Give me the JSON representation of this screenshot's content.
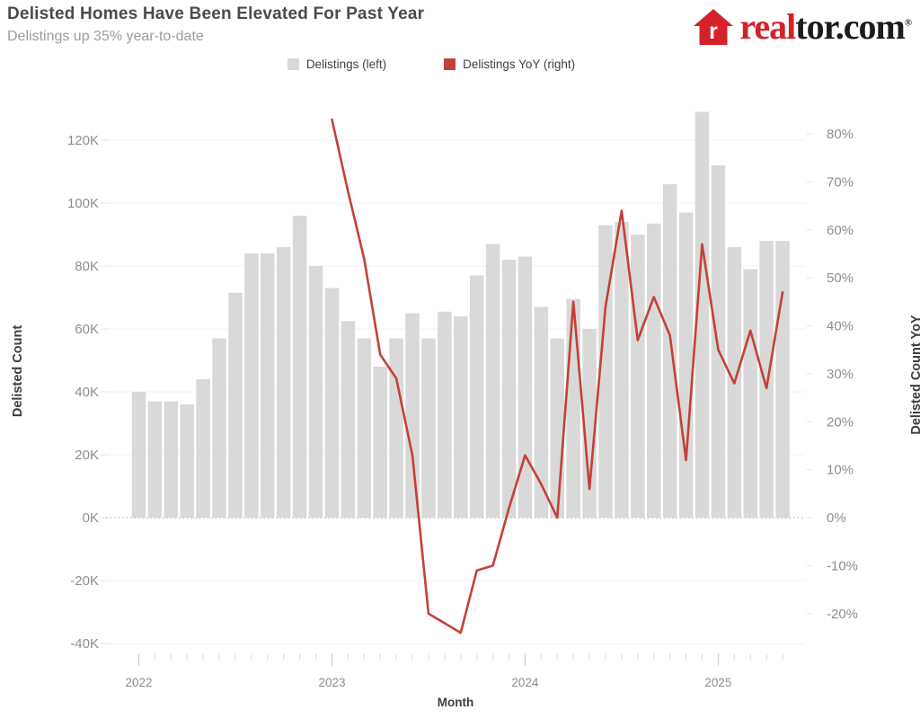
{
  "header": {
    "title": "Delisted Homes Have Been Elevated For Past Year",
    "subtitle": "Delistings up 35% year-to-date"
  },
  "logo": {
    "house_letter": "r",
    "prefix": "real",
    "suffix": "tor.com",
    "reg": "®",
    "house_color": "#d6212b"
  },
  "legend": [
    {
      "label": "Delistings (left)",
      "color": "#d9d9d9"
    },
    {
      "label": "Delistings YoY (right)",
      "color": "#c4403a"
    }
  ],
  "axes": {
    "left_title": "Delisted Count",
    "right_title": "Delisted Count YoY",
    "x_title": "Month",
    "left_ticks": [
      {
        "label": "120K",
        "value": 120
      },
      {
        "label": "100K",
        "value": 100
      },
      {
        "label": "80K",
        "value": 80
      },
      {
        "label": "60K",
        "value": 60
      },
      {
        "label": "40K",
        "value": 40
      },
      {
        "label": "20K",
        "value": 20
      },
      {
        "label": "0K",
        "value": 0
      },
      {
        "label": "-20K",
        "value": -20
      },
      {
        "label": "-40K",
        "value": -40
      }
    ],
    "right_ticks": [
      {
        "label": "80%",
        "value": 80
      },
      {
        "label": "70%",
        "value": 70
      },
      {
        "label": "60%",
        "value": 60
      },
      {
        "label": "50%",
        "value": 50
      },
      {
        "label": "40%",
        "value": 40
      },
      {
        "label": "30%",
        "value": 30
      },
      {
        "label": "20%",
        "value": 20
      },
      {
        "label": "10%",
        "value": 10
      },
      {
        "label": "0%",
        "value": 0
      },
      {
        "label": "-10%",
        "value": -10
      },
      {
        "label": "-20%",
        "value": -20
      }
    ],
    "year_labels": [
      {
        "label": "2022",
        "month_index": 0
      },
      {
        "label": "2023",
        "month_index": 12
      },
      {
        "label": "2024",
        "month_index": 24
      },
      {
        "label": "2025",
        "month_index": 36
      }
    ]
  },
  "chart_data": {
    "type": "bar+line combo",
    "title": "Delisted Homes Have Been Elevated For Past Year",
    "subtitle": "Delistings up 35% year-to-date",
    "xlabel": "Month",
    "categories": [
      "2022-01",
      "2022-02",
      "2022-03",
      "2022-04",
      "2022-05",
      "2022-06",
      "2022-07",
      "2022-08",
      "2022-09",
      "2022-10",
      "2022-11",
      "2022-12",
      "2023-01",
      "2023-02",
      "2023-03",
      "2023-04",
      "2023-05",
      "2023-06",
      "2023-07",
      "2023-08",
      "2023-09",
      "2023-10",
      "2023-11",
      "2023-12",
      "2024-01",
      "2024-02",
      "2024-03",
      "2024-04",
      "2024-05",
      "2024-06",
      "2024-07",
      "2024-08",
      "2024-09",
      "2024-10",
      "2024-11",
      "2024-12",
      "2025-01",
      "2025-02",
      "2025-03",
      "2025-04",
      "2025-05"
    ],
    "series": [
      {
        "name": "Delistings (left)",
        "type": "bar",
        "axis": "left",
        "unit": "thousands",
        "color": "#d9d9d9",
        "values": [
          40,
          37,
          37,
          36,
          44,
          57,
          71.5,
          84,
          84,
          86,
          96,
          80,
          73,
          62.5,
          57,
          48,
          57,
          65,
          57,
          65.5,
          64,
          77,
          87,
          82,
          83,
          67,
          57,
          69.5,
          60,
          93,
          94,
          90,
          93.5,
          106,
          97,
          129,
          112,
          86,
          79,
          88,
          88
        ]
      },
      {
        "name": "Delistings YoY (right)",
        "type": "line",
        "axis": "right",
        "unit": "percent",
        "color": "#c4403a",
        "start_index": 12,
        "values": [
          83,
          68,
          54,
          34,
          29,
          13,
          -20,
          -22,
          -24,
          -11,
          -10,
          2,
          13,
          7,
          0,
          45,
          6,
          44,
          64,
          37,
          46,
          38,
          12,
          57,
          35,
          28,
          39,
          27,
          47
        ]
      }
    ],
    "left_axis": {
      "label": "Delisted Count",
      "unit": "K",
      "tick_step": 20,
      "range": [
        -40,
        130
      ]
    },
    "right_axis": {
      "label": "Delisted Count YoY",
      "unit": "%",
      "tick_step": 10,
      "range": [
        -25,
        85
      ]
    },
    "x_axis": {
      "label": "Month",
      "years": [
        "2022",
        "2023",
        "2024",
        "2025"
      ]
    },
    "grid": "horizontal, light; zero line dotted",
    "legend_position": "top-center"
  },
  "colors": {
    "bar": "#d9d9d9",
    "line": "#c4403a",
    "grid": "#f1f1f1",
    "zero_line": "#c2c2c2",
    "tick_text": "#8e8e8e",
    "tick_mark": "#d8d8d8"
  }
}
